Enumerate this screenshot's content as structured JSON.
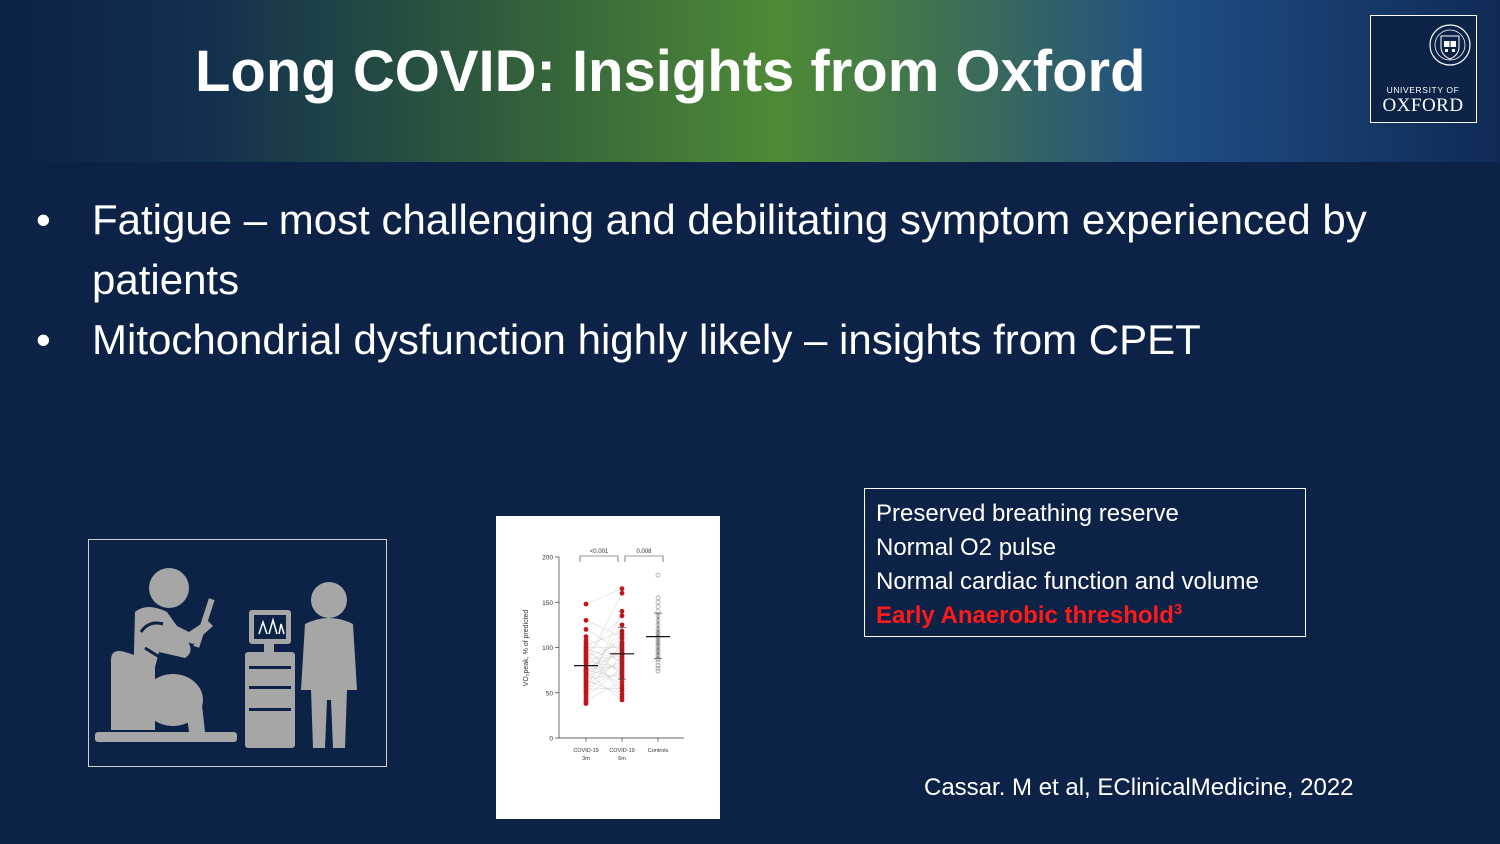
{
  "slide": {
    "title": "Long COVID: Insights from Oxford",
    "logo": {
      "line1": "UNIVERSITY OF",
      "line2": "OXFORD"
    },
    "bullets": [
      "Fatigue – most challenging and debilitating symptom experienced by patients",
      "Mitochondrial dysfunction highly likely – insights from CPET"
    ],
    "bullet_glyph": "•",
    "info_box": {
      "lines": [
        "Preserved breathing reserve",
        "Normal O2 pulse",
        "Normal cardiac function and volume"
      ],
      "highlight": "Early Anaerobic threshold",
      "highlight_sup": "3"
    },
    "citation": "Cassar. M et al, EClinicalMedicine, 2022",
    "icons": {
      "cyclist": "exercise-bike-test-icon",
      "logo_crest": "oxford-crest-icon"
    },
    "colors": {
      "background": "#0c2246",
      "highlight": "#ff1a1a",
      "icon_gray": "#a6a6a6",
      "chart_red": "#c0141b"
    }
  },
  "chart_data": {
    "type": "scatter",
    "ylabel": "VO₂peak, % of predicted",
    "ylim": [
      0,
      200
    ],
    "yticks": [
      0,
      50,
      100,
      150,
      200
    ],
    "categories": [
      {
        "line1": "COVID-19",
        "line2": "3m"
      },
      {
        "line1": "COVID-19",
        "line2": "6m"
      },
      {
        "line1": "Controls",
        "line2": ""
      }
    ],
    "significance": [
      {
        "from": 0,
        "to": 1,
        "label": "<0.001"
      },
      {
        "from": 1,
        "to": 2,
        "label": "0.008"
      }
    ],
    "series": [
      {
        "category": 0,
        "mean": 80,
        "values": [
          148,
          130,
          120,
          112,
          108,
          105,
          102,
          100,
          98,
          96,
          94,
          92,
          90,
          88,
          86,
          84,
          82,
          80,
          78,
          76,
          75,
          73,
          71,
          70,
          68,
          66,
          64,
          62,
          60,
          58,
          56,
          54,
          52,
          50,
          48,
          45,
          42,
          40,
          38
        ]
      },
      {
        "category": 1,
        "mean": 93,
        "sd": [
          65,
          122
        ],
        "values": [
          165,
          160,
          140,
          135,
          125,
          118,
          115,
          112,
          110,
          106,
          104,
          102,
          100,
          98,
          96,
          94,
          92,
          90,
          88,
          86,
          84,
          82,
          80,
          78,
          76,
          74,
          72,
          70,
          68,
          66,
          62,
          58,
          55,
          52,
          48,
          45,
          42
        ]
      },
      {
        "category": 2,
        "mean": 112,
        "sd": [
          88,
          138
        ],
        "values": [
          180,
          155,
          150,
          145,
          140,
          135,
          130,
          125,
          120,
          117,
          115,
          112,
          110,
          107,
          105,
          102,
          100,
          97,
          95,
          92,
          90,
          87,
          84,
          80,
          77,
          74
        ]
      }
    ]
  }
}
